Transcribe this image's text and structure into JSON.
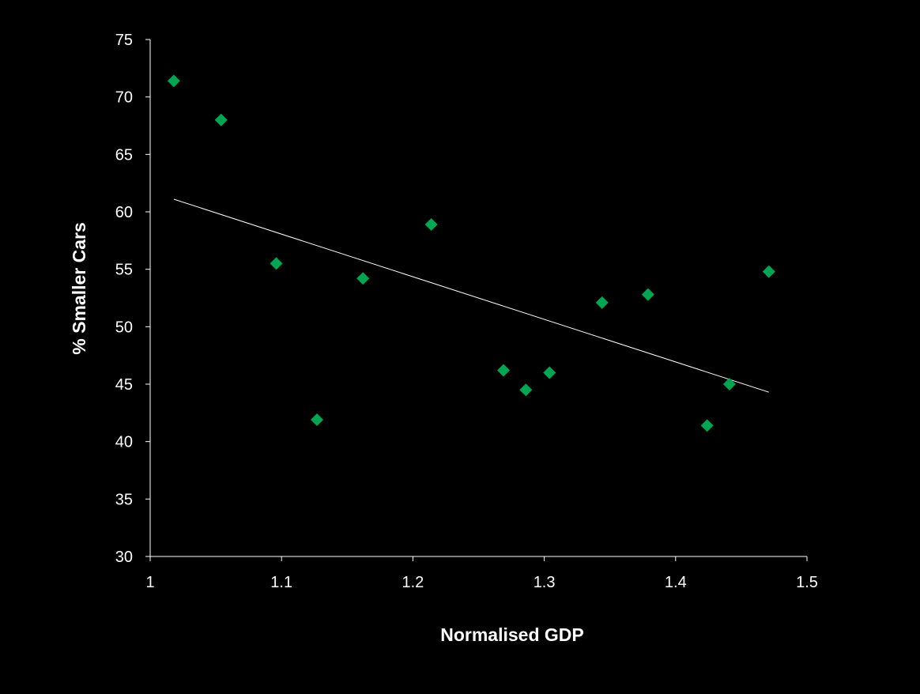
{
  "chart_data": {
    "type": "scatter",
    "title": "",
    "xlabel": "Normalised GDP",
    "ylabel": "% Smaller Cars",
    "xlim": [
      1,
      1.5
    ],
    "ylim": [
      30,
      75
    ],
    "x_ticks": [
      "1",
      "1.1",
      "1.2",
      "1.3",
      "1.4",
      "1.5"
    ],
    "y_ticks": [
      "30",
      "35",
      "40",
      "45",
      "50",
      "55",
      "60",
      "65",
      "70",
      "75"
    ],
    "grid": false,
    "legend": "none",
    "marker": "diamond",
    "colors": {
      "background": "#000000",
      "marker": "#00A651",
      "trendline": "#ffffff",
      "axis": "#ffffff",
      "text": "#ffffff"
    },
    "series": [
      {
        "x": [
          1.018,
          1.054,
          1.096,
          1.127,
          1.162,
          1.214,
          1.269,
          1.286,
          1.304,
          1.344,
          1.379,
          1.424,
          1.441,
          1.471
        ],
        "y": [
          71.4,
          68.0,
          55.5,
          41.9,
          54.2,
          58.9,
          46.2,
          44.5,
          46.0,
          52.1,
          52.8,
          41.4,
          45.0,
          54.8
        ]
      }
    ],
    "trendline": {
      "x": [
        1.018,
        1.471
      ],
      "y": [
        61.1,
        44.3
      ]
    }
  }
}
